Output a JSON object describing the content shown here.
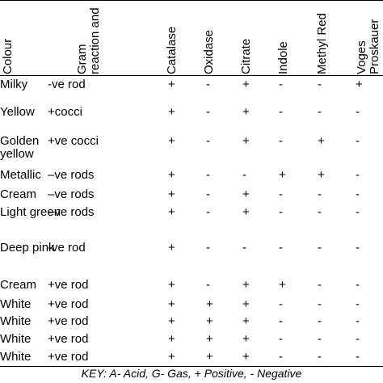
{
  "table": {
    "headers": [
      "Colour",
      "Gram reaction and cell morphology",
      "Catalase",
      "Oxidase",
      "Citrate",
      "Indole",
      "Methyl Red",
      "Voges Proskauer"
    ],
    "rows": [
      [
        "Milky",
        "-ve rod",
        "+",
        "-",
        "+",
        "-",
        "-",
        "+"
      ],
      [
        "Yellow",
        "+cocci",
        "+",
        "-",
        "+",
        "-",
        "-",
        "-"
      ],
      [
        "Golden yellow",
        "+ve cocci",
        "+",
        "-",
        "+",
        "-",
        "+",
        "-"
      ],
      [
        "Metallic",
        "–ve rods",
        "+",
        "-",
        "-",
        "+",
        "+",
        "-"
      ],
      [
        "Cream",
        "–ve rods",
        "+",
        "-",
        "+",
        "-",
        "-",
        "-"
      ],
      [
        "Light green",
        "–ve rods",
        "+",
        "-",
        "+",
        "-",
        "-",
        "-"
      ],
      [
        "Deep pink",
        "-ve rod",
        "+",
        "-",
        "-",
        "-",
        "-",
        "-"
      ],
      [
        "Cream",
        "+ve rod",
        "+",
        "-",
        "+",
        "+",
        "-",
        "-"
      ],
      [
        "White",
        "+ve rod",
        "+",
        "+",
        "+",
        "-",
        "-",
        "-"
      ],
      [
        "White",
        "+ve rod",
        "+",
        "+",
        "+",
        "-",
        "-",
        "-"
      ],
      [
        "White",
        "+ve rod",
        "+",
        "+",
        "+",
        "-",
        "-",
        "-"
      ],
      [
        "White",
        "+ve rod",
        "+",
        "+",
        "+",
        "-",
        "-",
        "-"
      ]
    ]
  },
  "key": "KEY: A- Acid, G- Gas, + Positive, - Negative"
}
